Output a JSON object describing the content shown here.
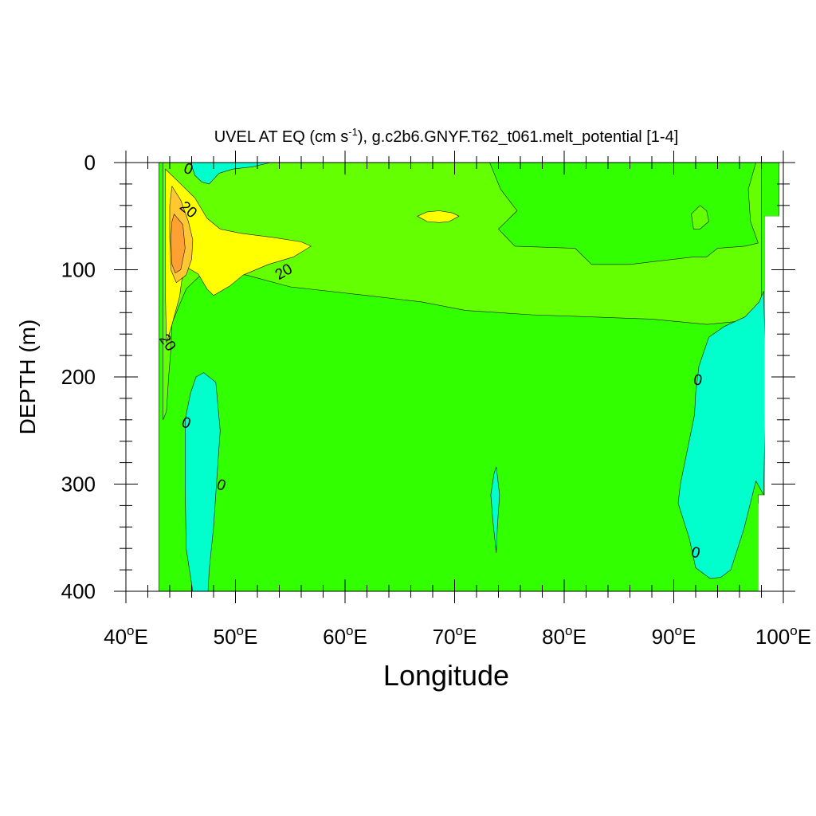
{
  "chart_data": {
    "type": "contour",
    "title": "UVEL AT EQ (cm s",
    "title_sup": "-1",
    "title_rest": "), g.c2b6.GNYF.T62_t061.melt_potential [1-4]",
    "xlabel": "Longitude",
    "ylabel": "DEPTH (m)",
    "xlim": [
      40,
      100
    ],
    "ylim": [
      400,
      0
    ],
    "y_reversed": true,
    "x_ticks": [
      {
        "value": 40,
        "num": "40",
        "sup": "o",
        "hem": "E"
      },
      {
        "value": 50,
        "num": "50",
        "sup": "o",
        "hem": "E"
      },
      {
        "value": 60,
        "num": "60",
        "sup": "o",
        "hem": "E"
      },
      {
        "value": 70,
        "num": "70",
        "sup": "o",
        "hem": "E"
      },
      {
        "value": 80,
        "num": "80",
        "sup": "o",
        "hem": "E"
      },
      {
        "value": 90,
        "num": "90",
        "sup": "o",
        "hem": "E"
      },
      {
        "value": 100,
        "num": "100",
        "sup": "o",
        "hem": "E"
      }
    ],
    "y_ticks": [
      {
        "value": 0,
        "label": "0"
      },
      {
        "value": 100,
        "label": "100"
      },
      {
        "value": 200,
        "label": "200"
      },
      {
        "value": 300,
        "label": "300"
      },
      {
        "value": 400,
        "label": "400"
      }
    ],
    "x_minor_step": 2,
    "y_minor_step": 20,
    "contour_colors": {
      "lt0": "#00ffcc",
      "0to10": "#32ff00",
      "10to20": "#64ff00",
      "20to30": "#ffff00",
      "30to40": "#ffc832",
      "gt40": "#ffa032",
      "missing": "#ffffff"
    },
    "regions": [
      {
        "name": "background-0-10",
        "color_key": "0to10",
        "pts": [
          [
            43,
            0
          ],
          [
            99.6,
            0
          ],
          [
            99.6,
            50
          ],
          [
            98.3,
            50
          ],
          [
            98.3,
            310
          ],
          [
            97.7,
            310
          ],
          [
            97.7,
            400
          ],
          [
            43,
            400
          ]
        ]
      },
      {
        "name": "upper-band-10-20",
        "color_key": "10to20",
        "pts": [
          [
            43.4,
            0
          ],
          [
            73.2,
            0
          ],
          [
            74.2,
            25
          ],
          [
            75.7,
            45
          ],
          [
            74,
            62
          ],
          [
            75.5,
            78
          ],
          [
            81,
            80
          ],
          [
            82.5,
            95
          ],
          [
            86,
            95
          ],
          [
            91.8,
            88
          ],
          [
            93,
            88
          ],
          [
            94,
            80
          ],
          [
            96.5,
            78
          ],
          [
            97.7,
            75
          ],
          [
            97,
            55
          ],
          [
            96.8,
            25
          ],
          [
            97.5,
            0
          ],
          [
            98,
            0
          ],
          [
            98,
            125
          ],
          [
            97.7,
            145
          ],
          [
            96,
            148
          ],
          [
            93,
            151
          ],
          [
            88,
            146
          ],
          [
            77,
            142
          ],
          [
            71,
            138
          ],
          [
            67,
            130
          ],
          [
            62,
            124
          ],
          [
            55,
            116
          ],
          [
            51,
            105
          ],
          [
            47.5,
            100
          ],
          [
            46.5,
            108
          ],
          [
            45.5,
            118
          ],
          [
            44.8,
            135
          ],
          [
            44.2,
            150
          ],
          [
            44.1,
            175
          ],
          [
            43.9,
            200
          ],
          [
            43.7,
            232
          ],
          [
            43.4,
            240
          ]
        ]
      },
      {
        "name": "yellow-core-20-30",
        "color_key": "20to30",
        "pts": [
          [
            43.6,
            6
          ],
          [
            44.8,
            18
          ],
          [
            46.3,
            33
          ],
          [
            47.4,
            52
          ],
          [
            48.6,
            62
          ],
          [
            50.5,
            66
          ],
          [
            53.5,
            70
          ],
          [
            56,
            74
          ],
          [
            56.9,
            78
          ],
          [
            55.3,
            88
          ],
          [
            53,
            95
          ],
          [
            50.7,
            105
          ],
          [
            49.5,
            115
          ],
          [
            48,
            124
          ],
          [
            47.4,
            118
          ],
          [
            46.6,
            104
          ],
          [
            45.6,
            98
          ],
          [
            45.1,
            110
          ],
          [
            44.9,
            125
          ],
          [
            44.5,
            140
          ],
          [
            44.1,
            155
          ],
          [
            43.7,
            168
          ],
          [
            43.6,
            120
          ],
          [
            43.6,
            60
          ]
        ]
      },
      {
        "name": "orange-30-40",
        "color_key": "30to40",
        "pts": [
          [
            44.2,
            22
          ],
          [
            45,
            35
          ],
          [
            45.7,
            55
          ],
          [
            46.1,
            72
          ],
          [
            46,
            90
          ],
          [
            45.5,
            105
          ],
          [
            44.6,
            112
          ],
          [
            44.1,
            100
          ],
          [
            44,
            70
          ],
          [
            44,
            40
          ]
        ]
      },
      {
        "name": "orange-core-gt40",
        "color_key": "gt40",
        "pts": [
          [
            44.4,
            48
          ],
          [
            45.2,
            58
          ],
          [
            45.4,
            80
          ],
          [
            45,
            100
          ],
          [
            44.5,
            103
          ],
          [
            44.2,
            95
          ],
          [
            44.1,
            70
          ],
          [
            44.2,
            55
          ]
        ]
      },
      {
        "name": "cyan-surface-top",
        "color_key": "lt0",
        "pts": [
          [
            45.9,
            0
          ],
          [
            53.2,
            0
          ],
          [
            51.5,
            4
          ],
          [
            49.8,
            6
          ],
          [
            48.5,
            10
          ],
          [
            47.6,
            20
          ],
          [
            46.9,
            18
          ],
          [
            46.3,
            12
          ]
        ]
      },
      {
        "name": "cyan-deep-west",
        "color_key": "lt0",
        "pts": [
          [
            47.1,
            196
          ],
          [
            48.2,
            205
          ],
          [
            48.6,
            250
          ],
          [
            48.3,
            295
          ],
          [
            48,
            340
          ],
          [
            47.6,
            380
          ],
          [
            47.5,
            400
          ],
          [
            46.1,
            400
          ],
          [
            45.5,
            360
          ],
          [
            45.4,
            300
          ],
          [
            45.4,
            240
          ],
          [
            45.9,
            215
          ],
          [
            46.4,
            200
          ]
        ]
      },
      {
        "name": "cyan-sliver-74E",
        "color_key": "lt0",
        "pts": [
          [
            73.8,
            284
          ],
          [
            74.1,
            310
          ],
          [
            73.9,
            340
          ],
          [
            73.8,
            364
          ],
          [
            73.5,
            335
          ],
          [
            73.3,
            310
          ],
          [
            73.6,
            290
          ]
        ]
      },
      {
        "name": "cyan-deep-east",
        "color_key": "lt0",
        "pts": [
          [
            98.2,
            120
          ],
          [
            97.8,
            130
          ],
          [
            96.5,
            144
          ],
          [
            94.6,
            153
          ],
          [
            93.2,
            163
          ],
          [
            92.3,
            190
          ],
          [
            92,
            215
          ],
          [
            91.9,
            235
          ],
          [
            91.3,
            265
          ],
          [
            90.6,
            300
          ],
          [
            90.4,
            318
          ],
          [
            91.4,
            350
          ],
          [
            92,
            378
          ],
          [
            93.3,
            388
          ],
          [
            94.3,
            387
          ],
          [
            95.2,
            380
          ],
          [
            96.4,
            342
          ],
          [
            97.5,
            297
          ],
          [
            98.2,
            310
          ],
          [
            98.4,
            200
          ]
        ]
      },
      {
        "name": "orange-yellow-blob-68E",
        "color_key": "20to30",
        "pts": [
          [
            66.6,
            50
          ],
          [
            67.5,
            46
          ],
          [
            68.6,
            45
          ],
          [
            69.8,
            47
          ],
          [
            70.4,
            50
          ],
          [
            69.5,
            55
          ],
          [
            68.6,
            56
          ],
          [
            67.5,
            55
          ]
        ]
      },
      {
        "name": "light-green-blob-92E",
        "color_key": "10to20",
        "pts": [
          [
            91.6,
            48
          ],
          [
            92.4,
            40
          ],
          [
            93,
            45
          ],
          [
            93.2,
            55
          ],
          [
            92.4,
            62
          ],
          [
            91.8,
            62
          ]
        ]
      },
      {
        "name": "white-missing-east",
        "color_key": "missing",
        "pts": [
          [
            98.3,
            50
          ],
          [
            99.6,
            50
          ],
          [
            99.6,
            400
          ],
          [
            97.7,
            400
          ],
          [
            97.7,
            318
          ],
          [
            98.3,
            318
          ]
        ]
      }
    ],
    "contour_labels": [
      {
        "text": "0",
        "x": 45.7,
        "y": 6,
        "rot": 20
      },
      {
        "text": "20",
        "x": 45.7,
        "y": 44,
        "rot": 40
      },
      {
        "text": "20",
        "x": 54.4,
        "y": 102,
        "rot": -30
      },
      {
        "text": "20",
        "x": 43.8,
        "y": 168,
        "rot": 55
      },
      {
        "text": "0",
        "x": 45.5,
        "y": 243,
        "rot": 20
      },
      {
        "text": "0",
        "x": 48.7,
        "y": 301,
        "rot": 20
      },
      {
        "text": "0",
        "x": 92.2,
        "y": 203,
        "rot": 10
      },
      {
        "text": "0",
        "x": 92,
        "y": 364,
        "rot": 15
      }
    ]
  }
}
